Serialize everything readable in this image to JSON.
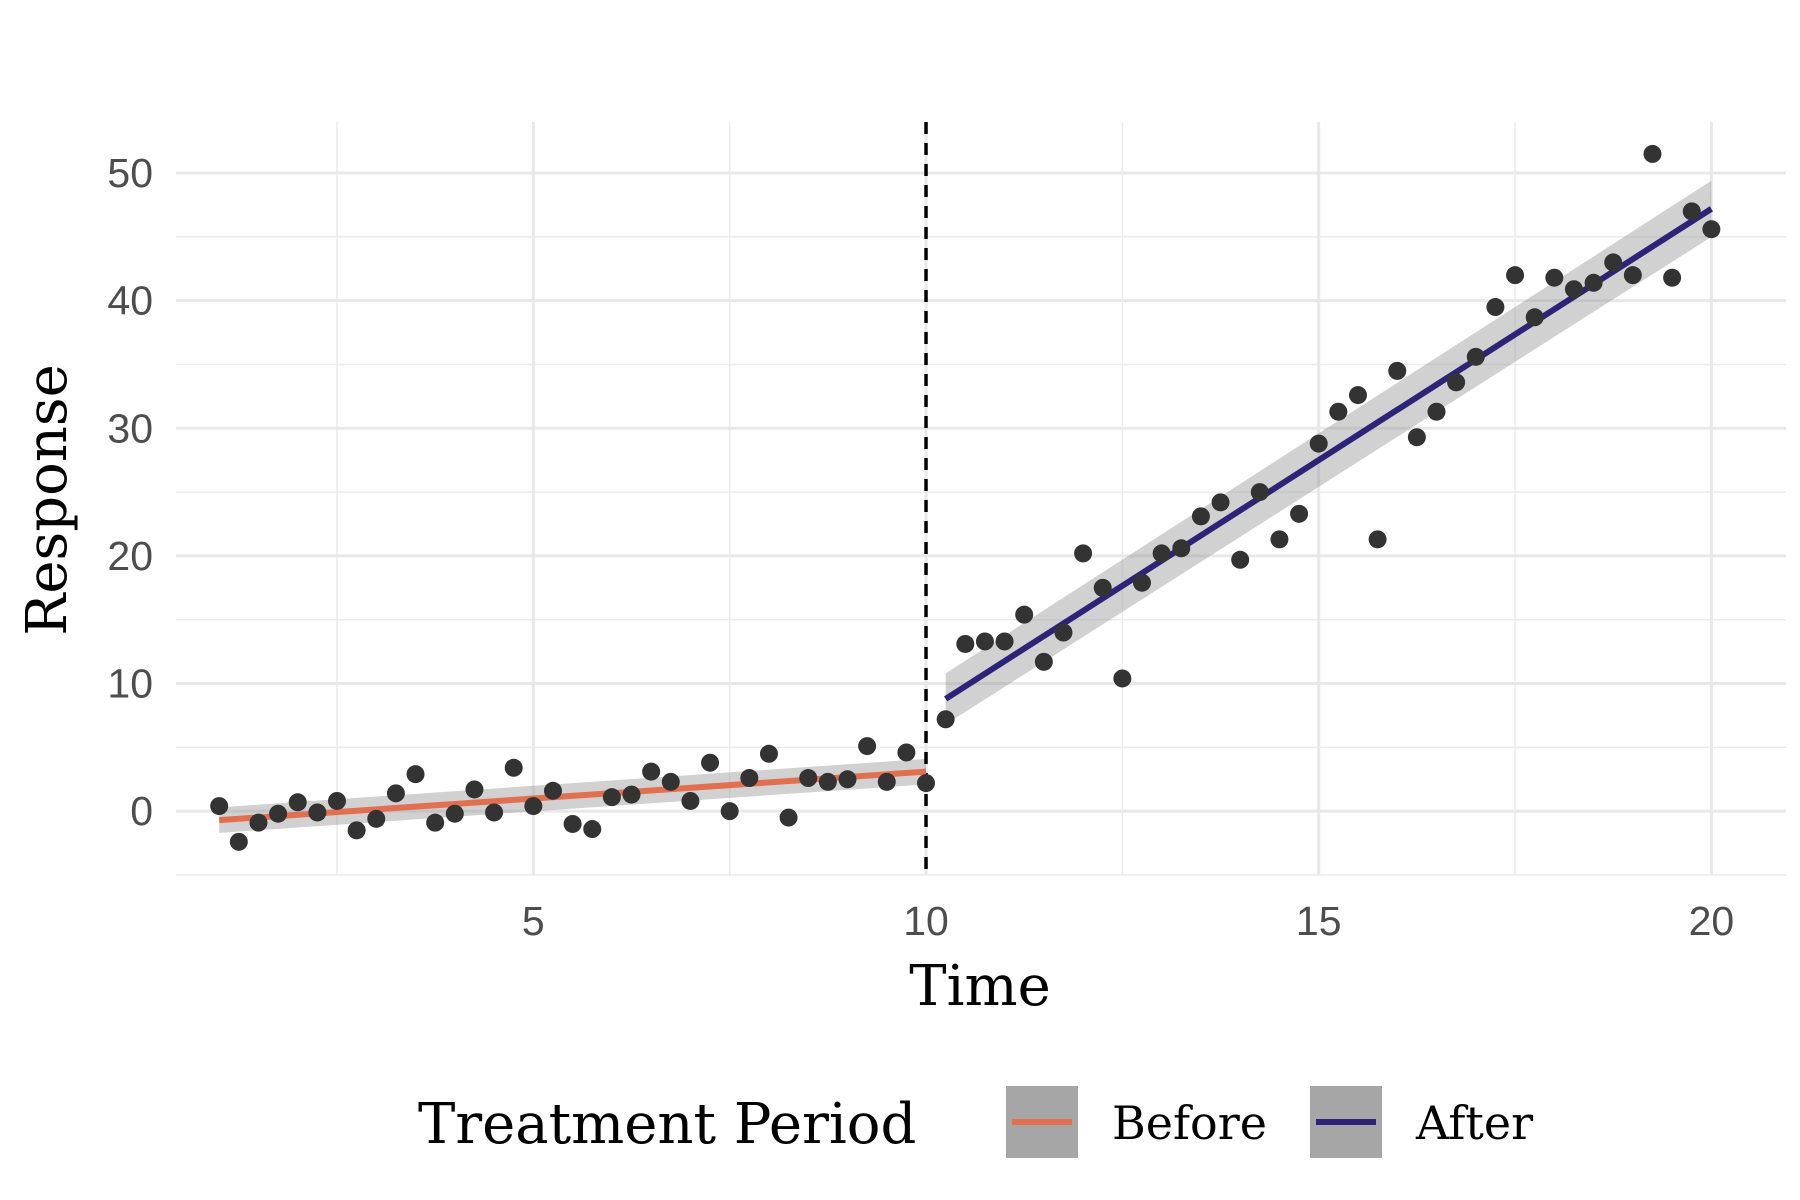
{
  "chart_data": {
    "type": "scatter",
    "xlabel": "Time",
    "ylabel": "Response",
    "xlim": [
      0.45,
      20.95
    ],
    "ylim": [
      -5,
      54
    ],
    "x_ticks": [
      5,
      10,
      15,
      20
    ],
    "x_tick_labels": [
      "5",
      "10",
      "15",
      "20"
    ],
    "y_ticks": [
      0,
      10,
      20,
      30,
      40,
      50
    ],
    "y_tick_labels": [
      "0",
      "10",
      "20",
      "30",
      "40",
      "50"
    ],
    "x_minor_gridlines": [
      2.5,
      7.5,
      12.5,
      17.5
    ],
    "y_minor_gridlines": [
      -5,
      5,
      15,
      25,
      35,
      45
    ],
    "grid": true,
    "vline": {
      "x": 10,
      "style": "dashed",
      "color": "#000000"
    },
    "legend": {
      "title": "Treatment Period",
      "position": "bottom",
      "entries": [
        "Before",
        "After"
      ]
    },
    "point_color": "#333333",
    "band_color": "#999999",
    "series": [
      {
        "name": "Before",
        "color": "#E07050",
        "fit": {
          "x0": 1,
          "y0": -0.7,
          "x1": 10,
          "y1": 3.1,
          "se_low": [
            -1.7,
            2.1
          ],
          "se_high": [
            0.3,
            4.1
          ]
        },
        "points": [
          [
            1.0,
            0.4
          ],
          [
            1.25,
            -2.4
          ],
          [
            1.5,
            -0.9
          ],
          [
            1.75,
            -0.2
          ],
          [
            2.0,
            0.7
          ],
          [
            2.25,
            -0.1
          ],
          [
            2.5,
            0.8
          ],
          [
            2.75,
            -1.5
          ],
          [
            3.0,
            -0.6
          ],
          [
            3.25,
            1.4
          ],
          [
            3.5,
            2.9
          ],
          [
            3.75,
            -0.9
          ],
          [
            4.0,
            -0.2
          ],
          [
            4.25,
            1.7
          ],
          [
            4.5,
            -0.1
          ],
          [
            4.75,
            3.4
          ],
          [
            5.0,
            0.4
          ],
          [
            5.25,
            1.6
          ],
          [
            5.5,
            -1.0
          ],
          [
            5.75,
            -1.4
          ],
          [
            6.0,
            1.1
          ],
          [
            6.25,
            1.3
          ],
          [
            6.5,
            3.1
          ],
          [
            6.75,
            2.3
          ],
          [
            7.0,
            0.8
          ],
          [
            7.25,
            3.8
          ],
          [
            7.5,
            0.0
          ],
          [
            7.75,
            2.6
          ],
          [
            8.0,
            4.5
          ],
          [
            8.25,
            -0.5
          ],
          [
            8.5,
            2.6
          ],
          [
            8.75,
            2.3
          ],
          [
            9.0,
            2.5
          ],
          [
            9.25,
            5.1
          ],
          [
            9.5,
            2.3
          ],
          [
            9.75,
            4.6
          ],
          [
            10.0,
            2.2
          ]
        ]
      },
      {
        "name": "After",
        "color": "#2D2478",
        "fit": {
          "x0": 10.25,
          "y0": 8.8,
          "x1": 20,
          "y1": 47.2,
          "se_low": [
            6.8,
            45.0
          ],
          "se_high": [
            10.8,
            49.4
          ]
        },
        "points": [
          [
            10.25,
            7.2
          ],
          [
            10.5,
            13.1
          ],
          [
            10.75,
            13.3
          ],
          [
            11.0,
            13.3
          ],
          [
            11.25,
            15.4
          ],
          [
            11.5,
            11.7
          ],
          [
            11.75,
            14.0
          ],
          [
            12.0,
            20.2
          ],
          [
            12.25,
            17.5
          ],
          [
            12.5,
            10.4
          ],
          [
            12.75,
            17.9
          ],
          [
            13.0,
            20.2
          ],
          [
            13.25,
            20.6
          ],
          [
            13.5,
            23.1
          ],
          [
            13.75,
            24.2
          ],
          [
            14.0,
            19.7
          ],
          [
            14.25,
            25.0
          ],
          [
            14.5,
            21.3
          ],
          [
            14.75,
            23.3
          ],
          [
            15.0,
            28.8
          ],
          [
            15.25,
            31.3
          ],
          [
            15.5,
            32.6
          ],
          [
            15.75,
            21.3
          ],
          [
            16.0,
            34.5
          ],
          [
            16.25,
            29.3
          ],
          [
            16.5,
            31.3
          ],
          [
            16.75,
            33.6
          ],
          [
            17.0,
            35.6
          ],
          [
            17.25,
            39.5
          ],
          [
            17.5,
            42.0
          ],
          [
            17.75,
            38.7
          ],
          [
            18.0,
            41.8
          ],
          [
            18.25,
            40.9
          ],
          [
            18.5,
            41.4
          ],
          [
            18.75,
            43.0
          ],
          [
            19.0,
            42.0
          ],
          [
            19.25,
            51.5
          ],
          [
            19.5,
            41.8
          ],
          [
            19.75,
            47.0
          ],
          [
            20.0,
            45.6
          ]
        ]
      }
    ]
  }
}
